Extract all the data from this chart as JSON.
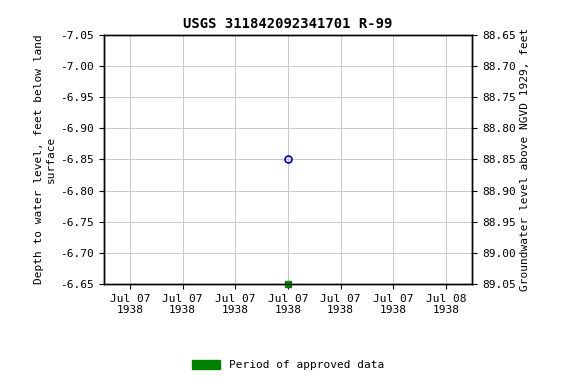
{
  "title": "USGS 311842092341701 R-99",
  "xlabel_dates": [
    "Jul 07\n1938",
    "Jul 07\n1938",
    "Jul 07\n1938",
    "Jul 07\n1938",
    "Jul 07\n1938",
    "Jul 07\n1938",
    "Jul 08\n1938"
  ],
  "left_ylabel": "Depth to water level, feet below land\nsurface",
  "right_ylabel": "Groundwater level above NGVD 1929, feet",
  "ylim_left": [
    -6.65,
    -7.05
  ],
  "ylim_right": [
    89.05,
    88.65
  ],
  "yticks_left": [
    -6.65,
    -6.7,
    -6.75,
    -6.8,
    -6.85,
    -6.9,
    -6.95,
    -7.0,
    -7.05
  ],
  "yticks_left_labels": [
    "-6.65",
    "-6.70",
    "-6.75",
    "-6.80",
    "-6.85",
    "-6.90",
    "-6.95",
    "-7.00",
    "-7.05"
  ],
  "yticks_right": [
    88.65,
    88.7,
    88.75,
    88.8,
    88.85,
    88.9,
    88.95,
    89.0,
    89.05
  ],
  "yticks_right_labels": [
    "88.65",
    "88.70",
    "88.75",
    "88.80",
    "88.85",
    "88.90",
    "88.95",
    "89.00",
    "89.05"
  ],
  "data_point_x": 3.0,
  "data_point_y": -6.85,
  "data_point_color": "#0000bb",
  "green_marker_x": 3.0,
  "green_marker_y": -6.65,
  "green_color": "#008000",
  "background_color": "#ffffff",
  "grid_color": "#c8c8c8",
  "title_fontsize": 10,
  "axis_label_fontsize": 8,
  "tick_fontsize": 8,
  "legend_label": "Period of approved data",
  "x_num_ticks": 7,
  "x_range": [
    -0.5,
    6.5
  ]
}
